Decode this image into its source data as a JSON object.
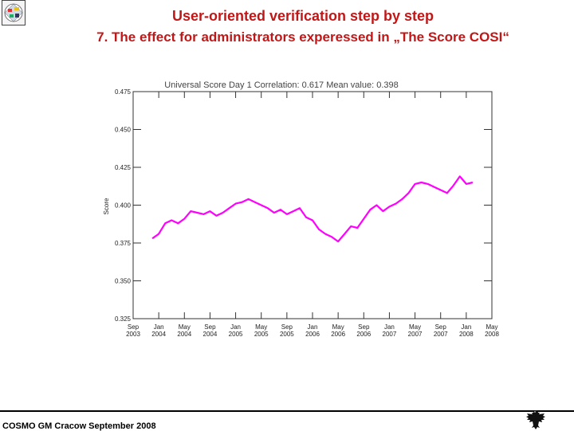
{
  "header": {
    "title": "User-oriented verification step by step",
    "subtitle": "7. The  effect for administrators experessed in „The Score COSI“"
  },
  "footer": {
    "text": "COSMO GM Cracow September 2008"
  },
  "icons": {
    "left_logo": "consortium-logo-icon",
    "right_logo": "eagle-emblem-icon"
  },
  "colors": {
    "title": "#c01818",
    "series": "#ff00ff"
  },
  "chart_data": {
    "type": "line",
    "title": "Universal Score Day 1 Correlation:   0.617  Mean value:    0.398",
    "ylabel": "Score",
    "xlabel": "",
    "ylim": [
      0.325,
      0.475
    ],
    "yticks": [
      "0.475",
      "0.450",
      "0.425",
      "0.400",
      "0.375",
      "0.350",
      "0.325"
    ],
    "xlim": [
      "2003-09",
      "2008-05"
    ],
    "xticks": [
      {
        "month": "Sep",
        "year": "2003",
        "date": "2003-09"
      },
      {
        "month": "Jan",
        "year": "2004",
        "date": "2004-01"
      },
      {
        "month": "May",
        "year": "2004",
        "date": "2004-05"
      },
      {
        "month": "Sep",
        "year": "2004",
        "date": "2004-09"
      },
      {
        "month": "Jan",
        "year": "2005",
        "date": "2005-01"
      },
      {
        "month": "May",
        "year": "2005",
        "date": "2005-05"
      },
      {
        "month": "Sep",
        "year": "2005",
        "date": "2005-09"
      },
      {
        "month": "Jan",
        "year": "2006",
        "date": "2006-01"
      },
      {
        "month": "May",
        "year": "2006",
        "date": "2006-05"
      },
      {
        "month": "Sep",
        "year": "2006",
        "date": "2006-09"
      },
      {
        "month": "Jan",
        "year": "2007",
        "date": "2007-01"
      },
      {
        "month": "May",
        "year": "2007",
        "date": "2007-05"
      },
      {
        "month": "Sep",
        "year": "2007",
        "date": "2007-09"
      },
      {
        "month": "Jan",
        "year": "2008",
        "date": "2008-01"
      },
      {
        "month": "May",
        "year": "2008",
        "date": "2008-05"
      }
    ],
    "grid": false,
    "series": [
      {
        "x": [
          "2003-12",
          "2004-01",
          "2004-02",
          "2004-03",
          "2004-04",
          "2004-05",
          "2004-06",
          "2004-07",
          "2004-08",
          "2004-09",
          "2004-10",
          "2004-11",
          "2004-12",
          "2005-01",
          "2005-02",
          "2005-03",
          "2005-04",
          "2005-05",
          "2005-06",
          "2005-07",
          "2005-08",
          "2005-09",
          "2005-10",
          "2005-11",
          "2005-12",
          "2006-01",
          "2006-02",
          "2006-03",
          "2006-04",
          "2006-05",
          "2006-06",
          "2006-07",
          "2006-08",
          "2006-09",
          "2006-10",
          "2006-11",
          "2006-12",
          "2007-01",
          "2007-02",
          "2007-03",
          "2007-04",
          "2007-05",
          "2007-06",
          "2007-07",
          "2007-08",
          "2007-09",
          "2007-10",
          "2007-11",
          "2007-12",
          "2008-01",
          "2008-02"
        ],
        "values": [
          0.378,
          0.381,
          0.388,
          0.39,
          0.388,
          0.391,
          0.396,
          0.395,
          0.394,
          0.396,
          0.393,
          0.395,
          0.398,
          0.401,
          0.402,
          0.404,
          0.402,
          0.4,
          0.398,
          0.395,
          0.397,
          0.394,
          0.396,
          0.398,
          0.392,
          0.39,
          0.384,
          0.381,
          0.379,
          0.376,
          0.381,
          0.386,
          0.385,
          0.391,
          0.397,
          0.4,
          0.396,
          0.399,
          0.401,
          0.404,
          0.408,
          0.414,
          0.415,
          0.414,
          0.412,
          0.41,
          0.408,
          0.413,
          0.419,
          0.414,
          0.415
        ]
      }
    ]
  }
}
